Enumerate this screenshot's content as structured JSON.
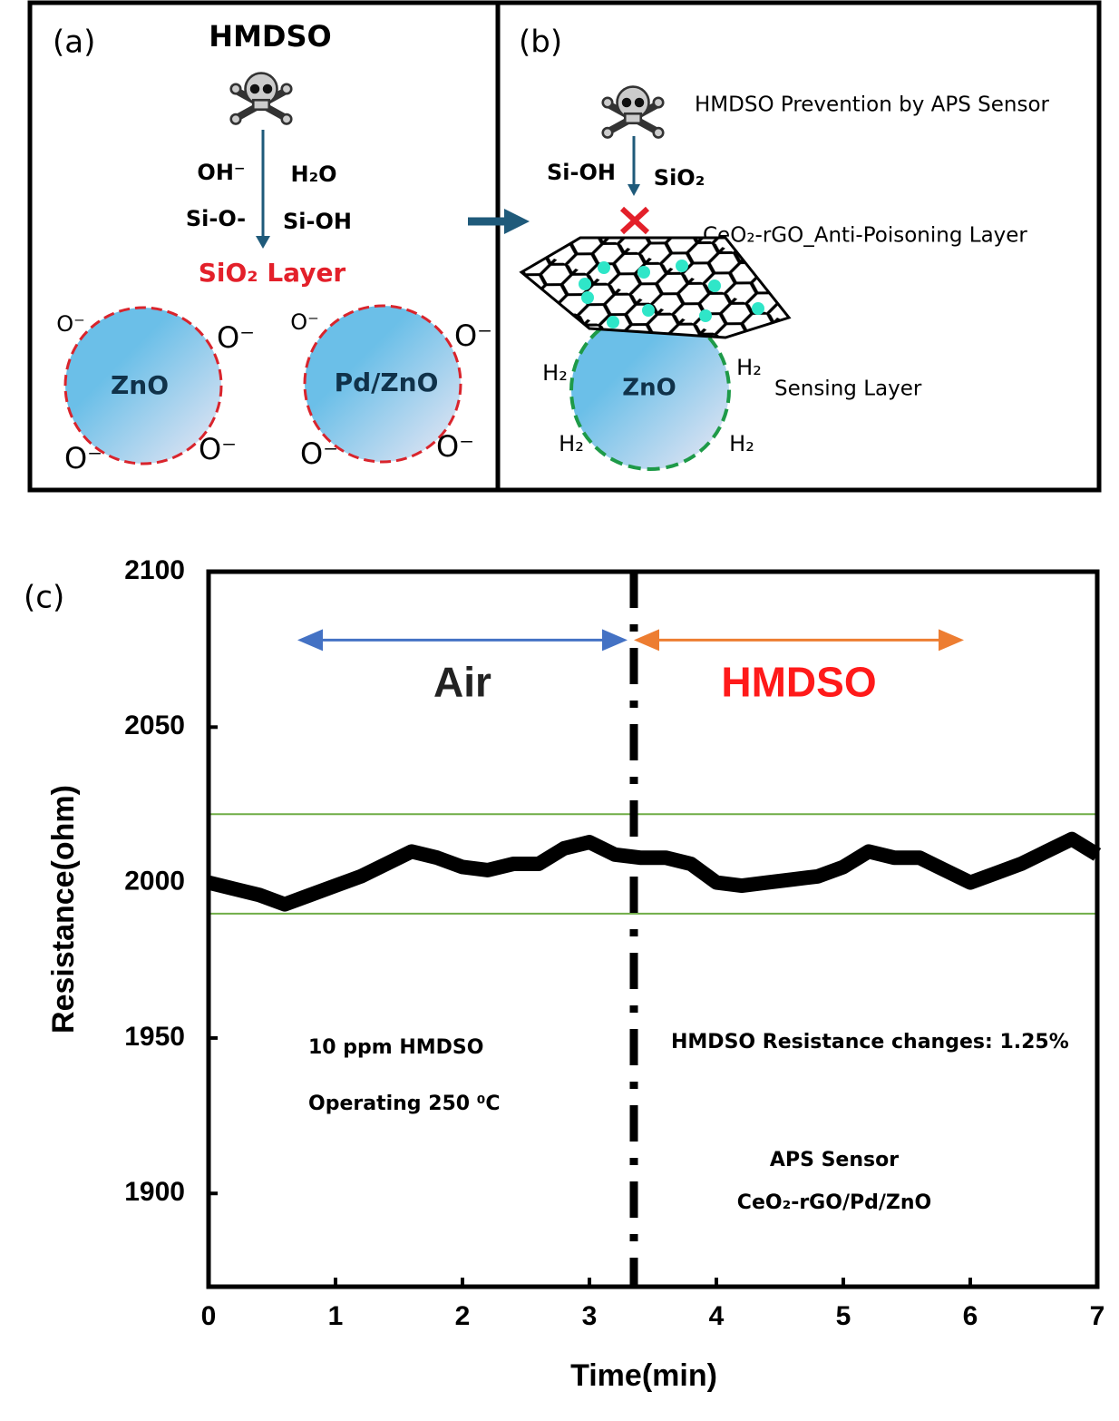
{
  "panel_a": {
    "label": "(a)",
    "title": "HMDSO",
    "left": [
      "OH⁻",
      "Si-O-"
    ],
    "right": [
      "H₂O",
      "Si-OH"
    ],
    "layer": "SiO₂ Layer",
    "particles": [
      {
        "label": "ZnO",
        "ions": [
          "O⁻",
          "O⁻",
          "O⁻",
          "O⁻"
        ]
      },
      {
        "label": "Pd/ZnO",
        "ions": [
          "O⁻",
          "O⁻",
          "O⁻",
          "O⁻"
        ]
      }
    ]
  },
  "panel_b": {
    "label": "(b)",
    "caption": "HMDSO Prevention by APS Sensor",
    "left": "Si-OH",
    "right": "SiO₂",
    "layer": "CeO₂-rGO_Anti-Poisoning Layer",
    "particle": "ZnO",
    "gases": [
      "H₂",
      "H₂",
      "H₂",
      "H₂"
    ],
    "sensing": "Sensing Layer"
  },
  "chart_data": {
    "type": "line",
    "panel_label": "(c)",
    "xlabel": "Time(min)",
    "ylabel": "Resistance(ohm)",
    "xlim": [
      0,
      7
    ],
    "xticks": [
      0,
      1,
      2,
      3,
      4,
      5,
      6,
      7
    ],
    "ylim": [
      1870,
      2100
    ],
    "yticks": [
      1900,
      1950,
      2000,
      2050,
      2100
    ],
    "x": [
      0,
      0.2,
      0.4,
      0.6,
      0.8,
      1.0,
      1.2,
      1.4,
      1.6,
      1.8,
      2.0,
      2.2,
      2.4,
      2.6,
      2.8,
      3.0,
      3.2,
      3.4,
      3.6,
      3.8,
      4.0,
      4.2,
      4.4,
      4.6,
      4.8,
      5.0,
      5.2,
      5.4,
      5.6,
      5.8,
      6.0,
      6.2,
      6.4,
      6.6,
      6.8,
      7.0
    ],
    "series": [
      {
        "color": "#000000",
        "values": [
          2000,
          1998,
          1996,
          1993,
          1996,
          1999,
          2002,
          2006,
          2010,
          2008,
          2005,
          2004,
          2006,
          2006,
          2011,
          2013,
          2009,
          2008,
          2008,
          2006,
          2000,
          1999,
          2000,
          2001,
          2002,
          2005,
          2010,
          2008,
          2008,
          2004,
          2000,
          2003,
          2006,
          2010,
          2014,
          2009
        ]
      }
    ],
    "hlines": [
      {
        "value": 2022,
        "color": "#70ad47"
      },
      {
        "value": 1990,
        "color": "#70ad47"
      }
    ],
    "vline": 3.35,
    "regions": [
      {
        "label": "Air",
        "from": 0.7,
        "to": 3.3,
        "y": 2078,
        "color": "#4472c4",
        "text_color": "#222222"
      },
      {
        "label": "HMDSO",
        "from": 3.35,
        "to": 5.95,
        "y": 2078,
        "color": "#ed7d31",
        "text_color": "#ff1a1a"
      }
    ],
    "annotations": [
      "10 ppm HMDSO",
      "Operating 250 ⁰C",
      "HMDSO Resistance changes: 1.25%",
      "APS Sensor",
      "CeO₂-rGO/Pd/ZnO"
    ]
  }
}
